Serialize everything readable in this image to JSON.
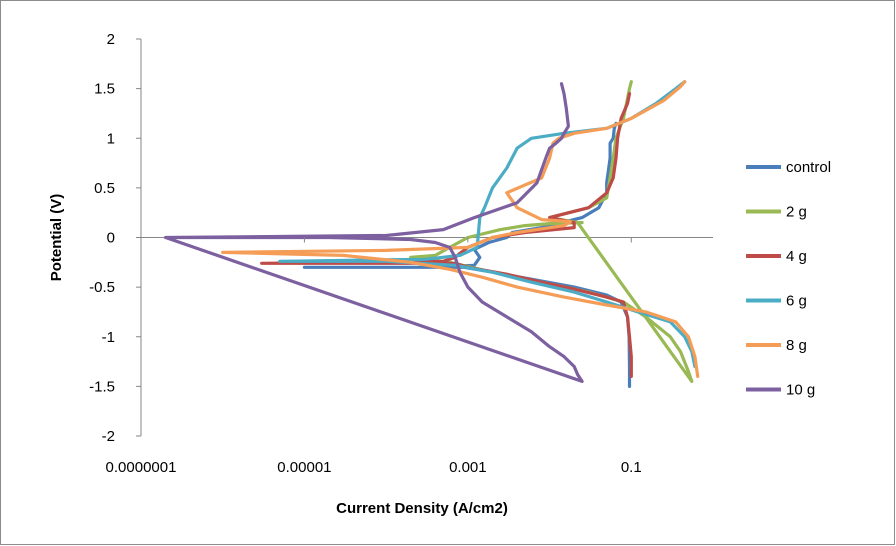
{
  "chart_data": {
    "type": "line",
    "title": "",
    "xlabel": "Current Density (A/cm2)",
    "ylabel": "Potential (V)",
    "x_scale": "log",
    "xlim": [
      1e-07,
      1
    ],
    "ylim": [
      -2,
      2
    ],
    "x_ticks": [
      {
        "value": 1e-07,
        "label": "0.0000001"
      },
      {
        "value": 1e-05,
        "label": "0.00001"
      },
      {
        "value": 0.001,
        "label": "0.001"
      },
      {
        "value": 0.1,
        "label": "0.1"
      }
    ],
    "y_ticks": [
      {
        "value": 2,
        "label": "2"
      },
      {
        "value": 1.5,
        "label": "1.5"
      },
      {
        "value": 1,
        "label": "1"
      },
      {
        "value": 0.5,
        "label": "0.5"
      },
      {
        "value": 0,
        "label": "0"
      },
      {
        "value": -0.5,
        "label": "-0.5"
      },
      {
        "value": -1,
        "label": "-1"
      },
      {
        "value": -1.5,
        "label": "-1.5"
      },
      {
        "value": -2,
        "label": "-2"
      }
    ],
    "grid": false,
    "legend_position": "right",
    "series": [
      {
        "name": "control",
        "color": "#4a7ebb",
        "points": [
          [
            0.095,
            -1.5
          ],
          [
            0.095,
            -1.3
          ],
          [
            0.094,
            -1.0
          ],
          [
            0.09,
            -0.8
          ],
          [
            0.075,
            -0.65
          ],
          [
            0.05,
            -0.58
          ],
          [
            0.02,
            -0.5
          ],
          [
            0.006,
            -0.42
          ],
          [
            0.002,
            -0.35
          ],
          [
            0.0009,
            -0.3
          ],
          [
            0.0003,
            -0.3
          ],
          [
            1e-05,
            -0.3
          ],
          [
            0.0003,
            -0.3
          ],
          [
            0.0012,
            -0.28
          ],
          [
            0.0014,
            -0.2
          ],
          [
            0.0012,
            -0.12
          ],
          [
            0.0018,
            -0.05
          ],
          [
            0.003,
            0.0
          ],
          [
            0.0035,
            0.05
          ],
          [
            0.008,
            0.1
          ],
          [
            0.025,
            0.2
          ],
          [
            0.04,
            0.3
          ],
          [
            0.05,
            0.45
          ],
          [
            0.05,
            0.55
          ],
          [
            0.055,
            0.8
          ],
          [
            0.055,
            0.95
          ],
          [
            0.06,
            1.0
          ],
          [
            0.062,
            1.1
          ],
          [
            0.065,
            1.15
          ]
        ]
      },
      {
        "name": "2 g",
        "color": "#98b954",
        "points": [
          [
            0.025,
            0.15
          ],
          [
            0.01,
            0.14
          ],
          [
            0.005,
            0.12
          ],
          [
            0.0025,
            0.08
          ],
          [
            0.001,
            0.0
          ],
          [
            0.0006,
            -0.1
          ],
          [
            0.0004,
            -0.18
          ],
          [
            0.0002,
            -0.2
          ],
          [
            0.0006,
            -0.25
          ],
          [
            0.002,
            -0.35
          ],
          [
            0.008,
            -0.45
          ],
          [
            0.03,
            -0.55
          ],
          [
            0.08,
            -0.65
          ],
          [
            0.15,
            -0.8
          ],
          [
            0.3,
            -1.0
          ],
          [
            0.4,
            -1.15
          ],
          [
            0.5,
            -1.35
          ],
          [
            0.55,
            -1.45
          ],
          [
            0.022,
            0.15
          ],
          [
            0.01,
            0.2
          ],
          [
            0.03,
            0.3
          ],
          [
            0.05,
            0.4
          ],
          [
            0.055,
            0.6
          ],
          [
            0.06,
            0.8
          ],
          [
            0.065,
            1.0
          ],
          [
            0.08,
            1.2
          ],
          [
            0.09,
            1.4
          ],
          [
            0.095,
            1.5
          ],
          [
            0.1,
            1.57
          ]
        ]
      },
      {
        "name": "4 g",
        "color": "#be4b48",
        "points": [
          [
            0.1,
            -1.4
          ],
          [
            0.1,
            -1.2
          ],
          [
            0.095,
            -1.0
          ],
          [
            0.09,
            -0.8
          ],
          [
            0.08,
            -0.65
          ],
          [
            0.05,
            -0.6
          ],
          [
            0.02,
            -0.52
          ],
          [
            0.008,
            -0.45
          ],
          [
            0.003,
            -0.37
          ],
          [
            0.001,
            -0.3
          ],
          [
            0.0007,
            -0.26
          ],
          [
            3e-06,
            -0.26
          ],
          [
            0.0005,
            -0.24
          ],
          [
            0.0007,
            -0.2
          ],
          [
            0.0008,
            -0.16
          ],
          [
            0.001,
            -0.1
          ],
          [
            0.002,
            0.0
          ],
          [
            0.005,
            0.05
          ],
          [
            0.02,
            0.1
          ],
          [
            0.02,
            0.15
          ],
          [
            0.01,
            0.2
          ],
          [
            0.03,
            0.3
          ],
          [
            0.05,
            0.45
          ],
          [
            0.06,
            0.6
          ],
          [
            0.065,
            0.8
          ],
          [
            0.068,
            1.0
          ],
          [
            0.075,
            1.2
          ],
          [
            0.09,
            1.35
          ],
          [
            0.095,
            1.45
          ]
        ]
      },
      {
        "name": "6 g",
        "color": "#4bacc6",
        "points": [
          [
            0.6,
            -1.3
          ],
          [
            0.55,
            -1.15
          ],
          [
            0.45,
            -1.0
          ],
          [
            0.3,
            -0.85
          ],
          [
            0.12,
            -0.75
          ],
          [
            0.05,
            -0.65
          ],
          [
            0.02,
            -0.55
          ],
          [
            0.006,
            -0.45
          ],
          [
            0.002,
            -0.35
          ],
          [
            0.0007,
            -0.28
          ],
          [
            0.0001,
            -0.24
          ],
          [
            5e-06,
            -0.24
          ],
          [
            0.0003,
            -0.22
          ],
          [
            0.0008,
            -0.18
          ],
          [
            0.0013,
            -0.1
          ],
          [
            0.0014,
            0.2
          ],
          [
            0.0016,
            0.3
          ],
          [
            0.002,
            0.5
          ],
          [
            0.003,
            0.7
          ],
          [
            0.004,
            0.9
          ],
          [
            0.006,
            1.0
          ],
          [
            0.015,
            1.05
          ],
          [
            0.05,
            1.1
          ],
          [
            0.1,
            1.2
          ],
          [
            0.2,
            1.35
          ],
          [
            0.35,
            1.5
          ],
          [
            0.45,
            1.57
          ]
        ]
      },
      {
        "name": "8 g",
        "color": "#f59d56",
        "points": [
          [
            0.65,
            -1.4
          ],
          [
            0.6,
            -1.2
          ],
          [
            0.5,
            -1.0
          ],
          [
            0.35,
            -0.85
          ],
          [
            0.15,
            -0.75
          ],
          [
            0.05,
            -0.68
          ],
          [
            0.015,
            -0.6
          ],
          [
            0.004,
            -0.5
          ],
          [
            0.0015,
            -0.4
          ],
          [
            0.0006,
            -0.32
          ],
          [
            0.0002,
            -0.25
          ],
          [
            3e-05,
            -0.18
          ],
          [
            1e-06,
            -0.15
          ],
          [
            0.0001,
            -0.13
          ],
          [
            0.001,
            -0.1
          ],
          [
            0.002,
            0.0
          ],
          [
            0.004,
            0.05
          ],
          [
            0.015,
            0.12
          ],
          [
            0.018,
            0.16
          ],
          [
            0.008,
            0.18
          ],
          [
            0.004,
            0.3
          ],
          [
            0.003,
            0.45
          ],
          [
            0.008,
            0.6
          ],
          [
            0.01,
            0.8
          ],
          [
            0.011,
            0.95
          ],
          [
            0.013,
            1.0
          ],
          [
            0.02,
            1.05
          ],
          [
            0.05,
            1.1
          ],
          [
            0.1,
            1.2
          ],
          [
            0.25,
            1.38
          ],
          [
            0.4,
            1.52
          ],
          [
            0.45,
            1.57
          ]
        ]
      },
      {
        "name": "10 g",
        "color": "#7d60a0",
        "points": [
          [
            2e-07,
            0.0
          ],
          [
            2e-05,
            0.0
          ],
          [
            0.0002,
            -0.02
          ],
          [
            0.0004,
            -0.05
          ],
          [
            0.0006,
            -0.1
          ],
          [
            0.0007,
            -0.2
          ],
          [
            0.0008,
            -0.35
          ],
          [
            0.001,
            -0.5
          ],
          [
            0.0015,
            -0.65
          ],
          [
            0.003,
            -0.8
          ],
          [
            0.006,
            -0.95
          ],
          [
            0.01,
            -1.1
          ],
          [
            0.015,
            -1.2
          ],
          [
            0.02,
            -1.3
          ],
          [
            0.022,
            -1.38
          ],
          [
            0.025,
            -1.45
          ],
          [
            2e-07,
            0.0
          ],
          [
            0.0001,
            0.02
          ],
          [
            0.0005,
            0.08
          ],
          [
            0.0012,
            0.2
          ],
          [
            0.004,
            0.35
          ],
          [
            0.007,
            0.55
          ],
          [
            0.009,
            0.8
          ],
          [
            0.01,
            0.9
          ],
          [
            0.012,
            0.95
          ],
          [
            0.014,
            1.0
          ],
          [
            0.015,
            1.05
          ],
          [
            0.017,
            1.12
          ],
          [
            0.016,
            1.3
          ],
          [
            0.015,
            1.45
          ],
          [
            0.014,
            1.55
          ]
        ]
      }
    ]
  }
}
